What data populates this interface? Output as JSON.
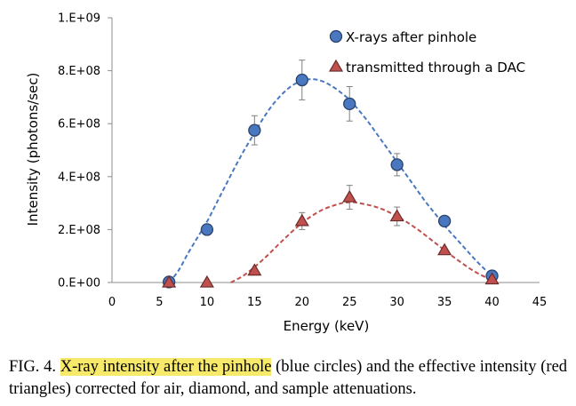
{
  "chart_data": {
    "type": "scatter",
    "title": "",
    "xlabel": "Energy (keV)",
    "ylabel": "Intensity (photons/sec)",
    "xlim": [
      0,
      45
    ],
    "ylim": [
      0,
      1000000000
    ],
    "x_ticks": [
      "0",
      "5",
      "10",
      "15",
      "20",
      "25",
      "30",
      "35",
      "40",
      "45"
    ],
    "y_ticks": [
      "0.E+00",
      "2.E+08",
      "4.E+08",
      "6.E+08",
      "8.E+08",
      "1.E+09"
    ],
    "grid": false,
    "legend_position": "top-right",
    "series": [
      {
        "name": "X-rays after pinhole",
        "marker": "circle",
        "color": "#4a78c0",
        "x": [
          6,
          10,
          15,
          20,
          25,
          30,
          35,
          40
        ],
        "y": [
          2000000,
          200000000,
          575000000,
          765000000,
          675000000,
          445000000,
          232000000,
          25000000
        ],
        "error": [
          0,
          0,
          55000000,
          75000000,
          65000000,
          42000000,
          0,
          0
        ],
        "fit_line": {
          "x": [
            6,
            7,
            8,
            9,
            10,
            11,
            12,
            13,
            14,
            15,
            16,
            17,
            18,
            19,
            20,
            21,
            22,
            23,
            24,
            25,
            26,
            27,
            28,
            29,
            30,
            31,
            32,
            33,
            34,
            35,
            36,
            37,
            38,
            39,
            40
          ],
          "y": [
            0,
            45000000,
            110000000,
            170000000,
            230000000,
            300000000,
            370000000,
            440000000,
            505000000,
            565000000,
            625000000,
            675000000,
            715000000,
            745000000,
            762000000,
            768000000,
            762000000,
            745000000,
            720000000,
            690000000,
            650000000,
            605000000,
            555000000,
            505000000,
            455000000,
            405000000,
            355000000,
            305000000,
            260000000,
            215000000,
            175000000,
            135000000,
            95000000,
            58000000,
            25000000
          ]
        }
      },
      {
        "name": "transmitted through a DAC",
        "marker": "triangle",
        "color": "#c0504d",
        "x": [
          6,
          10,
          15,
          20,
          25,
          30,
          35,
          40
        ],
        "y": [
          0,
          0,
          45000000,
          232000000,
          322000000,
          250000000,
          122000000,
          12000000
        ],
        "error": [
          0,
          0,
          0,
          32000000,
          45000000,
          35000000,
          0,
          0
        ],
        "fit_line": {
          "x": [
            12.5,
            14,
            16,
            18,
            20,
            22,
            24,
            25,
            26,
            28,
            30,
            32,
            34,
            35,
            36,
            38,
            40
          ],
          "y": [
            0,
            30000000,
            90000000,
            160000000,
            225000000,
            272000000,
            298000000,
            303000000,
            300000000,
            283000000,
            250000000,
            205000000,
            150000000,
            122000000,
            95000000,
            45000000,
            8000000
          ]
        }
      }
    ]
  },
  "caption": {
    "prefix": "FIG. 4.",
    "highlight": "X-ray intensity after the pinhole",
    "rest": " (blue circles) and the effective intensity (red triangles) corrected for air, diamond, and sample attenuations."
  }
}
